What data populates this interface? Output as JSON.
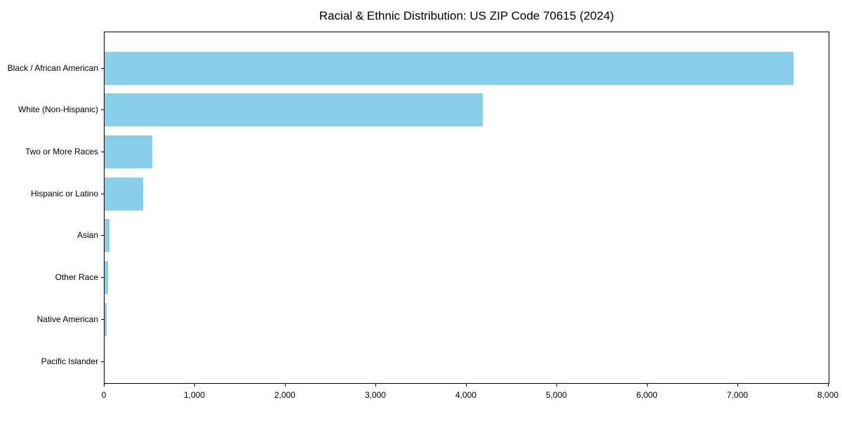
{
  "page": {
    "background": "#ffffff"
  },
  "chart_data": {
    "type": "bar",
    "orientation": "horizontal",
    "title": "Racial & Ethnic Distribution: US ZIP Code 70615 (2024)",
    "categories": [
      "Black / African American",
      "White (Non-Hispanic)",
      "Two or More Races",
      "Hispanic or Latino",
      "Asian",
      "Other Race",
      "Native American",
      "Pacific Islander"
    ],
    "values": [
      7615,
      4175,
      525,
      430,
      55,
      40,
      25,
      0
    ],
    "xlabel": "",
    "ylabel": "",
    "xlim": [
      0,
      8016
    ],
    "xticks": [
      0,
      1000,
      2000,
      3000,
      4000,
      5000,
      6000,
      7000,
      8000
    ],
    "xtick_labels": [
      "0",
      "1,000",
      "2,000",
      "3,000",
      "4,000",
      "5,000",
      "6,000",
      "7,000",
      "8,000"
    ],
    "bar_color": "#87CEEB",
    "axis_color": "#000000",
    "text_color": "#000000",
    "grid": false,
    "legend": false
  }
}
